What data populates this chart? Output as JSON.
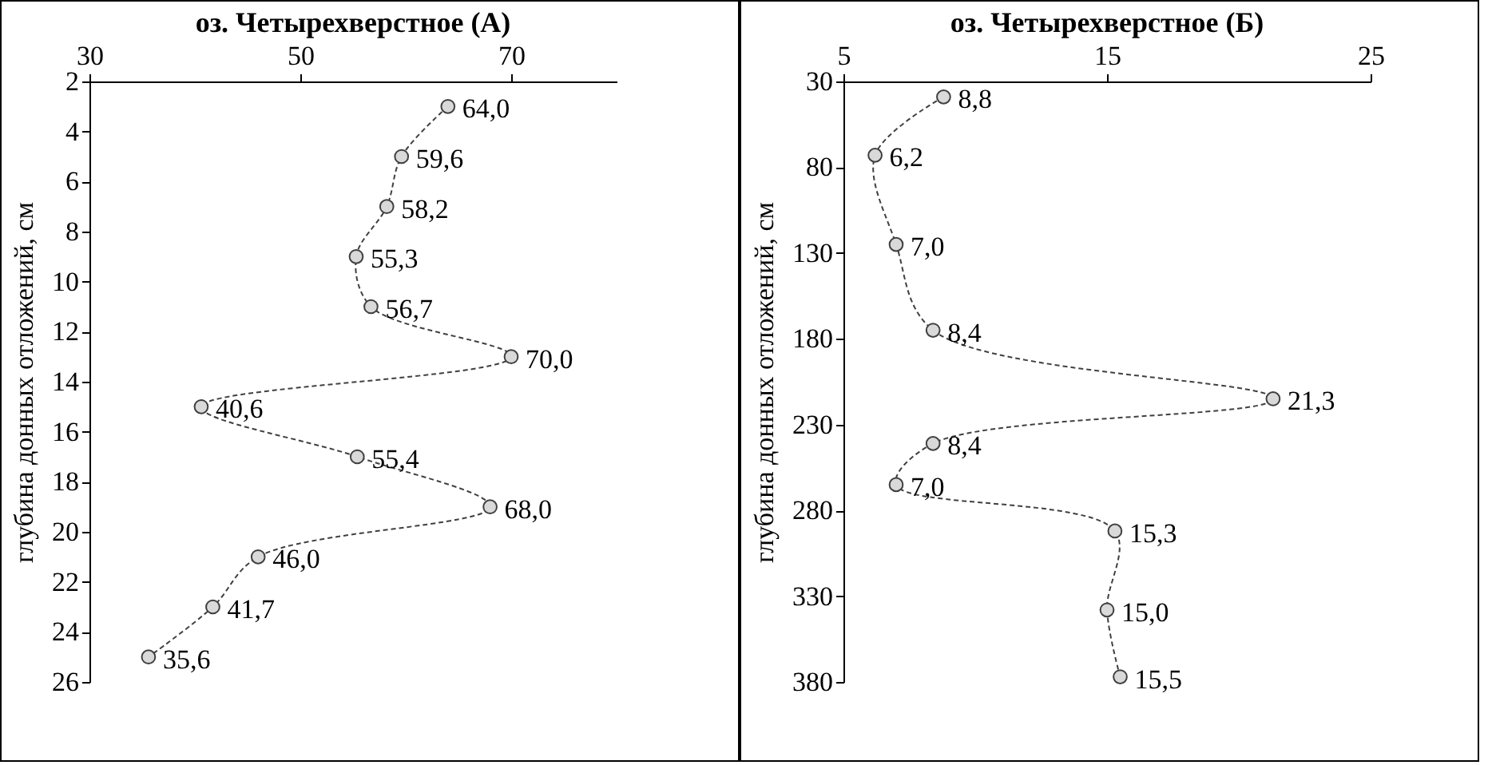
{
  "chart_data": [
    {
      "type": "line",
      "orientation": "horizontal",
      "title": "оз. Четырехверстное  (А)",
      "ylabel": "глубина донных отложений, см",
      "marker": "circle",
      "line_style": "dashed",
      "grid": false,
      "x": [
        3,
        5,
        7,
        9,
        11,
        13,
        15,
        17,
        19,
        21,
        23,
        25
      ],
      "series": [
        {
          "color": "#404040",
          "values": [
            64.0,
            59.6,
            58.2,
            55.3,
            56.7,
            70.0,
            40.6,
            55.4,
            68.0,
            46.0,
            41.7,
            35.6
          ],
          "value_labels": [
            "64,0",
            "59,6",
            "58,2",
            "55,3",
            "56,7",
            "70,0",
            "40,6",
            "55,4",
            "68,0",
            "46,0",
            "41,7",
            "35,6"
          ]
        }
      ],
      "xlim": [
        30,
        80
      ],
      "xticks": [
        30,
        50,
        70
      ],
      "ylim": [
        26,
        2
      ],
      "yticks": [
        2,
        4,
        6,
        8,
        10,
        12,
        14,
        16,
        18,
        20,
        22,
        24,
        26
      ]
    },
    {
      "type": "line",
      "orientation": "horizontal",
      "title": "оз. Четырехверстное  (Б)",
      "ylabel": "глубина донных отложений, см",
      "marker": "circle",
      "line_style": "dashed",
      "grid": false,
      "x": [
        39,
        73,
        125,
        175,
        215,
        241,
        265,
        292,
        338,
        377
      ],
      "series": [
        {
          "color": "#404040",
          "values": [
            8.8,
            6.2,
            7.0,
            8.4,
            21.3,
            8.4,
            7.0,
            15.3,
            15.0,
            15.5
          ],
          "value_labels": [
            "8,8",
            "6,2",
            "7,0",
            "8,4",
            "21,3",
            "8,4",
            "7,0",
            "15,3",
            "15,0",
            "15,5"
          ]
        }
      ],
      "xlim": [
        5,
        25
      ],
      "xticks": [
        5,
        15,
        25
      ],
      "ylim": [
        380,
        30
      ],
      "yticks": [
        30,
        80,
        130,
        180,
        230,
        280,
        330,
        380
      ]
    }
  ]
}
